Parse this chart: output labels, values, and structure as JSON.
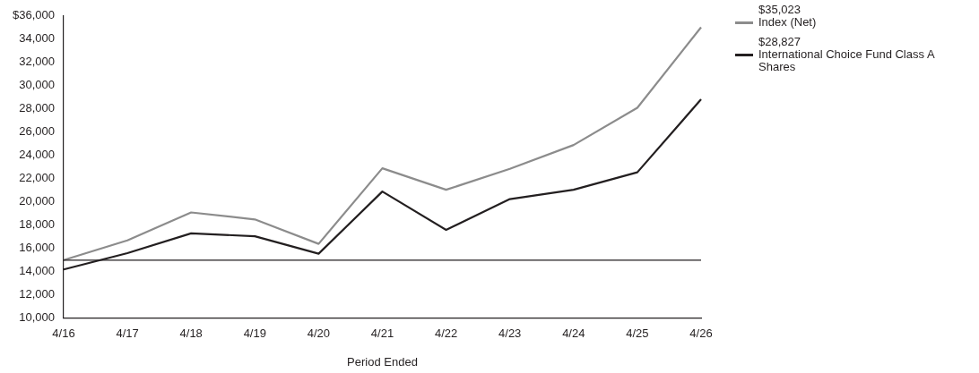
{
  "chart_data": {
    "type": "line",
    "xlabel": "Period Ended",
    "categories": [
      "4/16",
      "4/17",
      "4/18",
      "4/19",
      "4/20",
      "4/21",
      "4/22",
      "4/23",
      "4/24",
      "4/25",
      "4/26"
    ],
    "series": [
      {
        "name": "Index (Net)",
        "color": "#8c8c8c",
        "values": [
          15000,
          16700,
          19100,
          18500,
          16400,
          22900,
          21050,
          22850,
          24900,
          28100,
          35023
        ]
      },
      {
        "name": "International Choice Fund Class A Shares",
        "color": "#231f20",
        "values": [
          14200,
          15600,
          17300,
          17050,
          15550,
          20900,
          17600,
          20250,
          21050,
          22550,
          28827
        ]
      }
    ],
    "annotations": [
      "$35,023",
      "$28,827"
    ],
    "ylim": [
      10000,
      36000
    ],
    "yticks": [
      {
        "value": 10000,
        "label": "10,000"
      },
      {
        "value": 12000,
        "label": "12,000"
      },
      {
        "value": 14000,
        "label": "14,000"
      },
      {
        "value": 16000,
        "label": "16,000"
      },
      {
        "value": 18000,
        "label": "18,000"
      },
      {
        "value": 20000,
        "label": "20,000"
      },
      {
        "value": 22000,
        "label": "22,000"
      },
      {
        "value": 24000,
        "label": "24,000"
      },
      {
        "value": 26000,
        "label": "26,000"
      },
      {
        "value": 28000,
        "label": "28,000"
      },
      {
        "value": 30000,
        "label": "30,000"
      },
      {
        "value": 32000,
        "label": "32,000"
      },
      {
        "value": 34000,
        "label": "34,000"
      },
      {
        "value": 36000,
        "label": "$36,000"
      }
    ],
    "ref_lines": [
      {
        "axis": "y",
        "value": 15000,
        "color": "#231f20"
      }
    ],
    "legend": "right",
    "grid": false,
    "marker": "none",
    "line_style": "solid"
  }
}
